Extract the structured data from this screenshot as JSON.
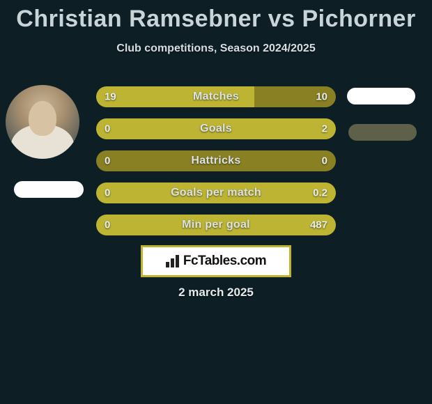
{
  "title": "Christian Ramsebner vs Pichorner",
  "subtitle": "Club competitions, Season 2024/2025",
  "date": "2 march 2025",
  "colors": {
    "background": "#0d1e25",
    "bar_base": "#897f23",
    "bar_fill": "#bcb432",
    "title_color": "#c8d4d8",
    "text_color": "#e9edee",
    "brand_border": "#bcb432",
    "brand_bg": "#ffffff"
  },
  "bars": [
    {
      "label": "Matches",
      "left": "19",
      "right": "10",
      "fill_left_pct": 66,
      "fill_right_pct": 0
    },
    {
      "label": "Goals",
      "left": "0",
      "right": "2",
      "fill_left_pct": 0,
      "fill_right_pct": 100
    },
    {
      "label": "Hattricks",
      "left": "0",
      "right": "0",
      "fill_left_pct": 0,
      "fill_right_pct": 0
    },
    {
      "label": "Goals per match",
      "left": "0",
      "right": "0.2",
      "fill_left_pct": 0,
      "fill_right_pct": 100
    },
    {
      "label": "Min per goal",
      "left": "0",
      "right": "487",
      "fill_left_pct": 0,
      "fill_right_pct": 100
    }
  ],
  "brand": {
    "text": "FcTables.com"
  }
}
